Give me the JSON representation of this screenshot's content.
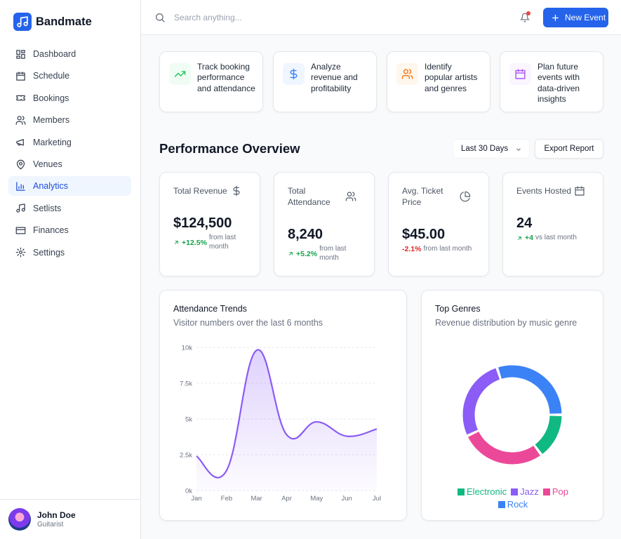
{
  "brand": "Bandmate",
  "nav": [
    "Dashboard",
    "Schedule",
    "Bookings",
    "Members",
    "Marketing",
    "Venues",
    "Analytics",
    "Setlists",
    "Finances",
    "Settings"
  ],
  "user": {
    "name": "John Doe",
    "role": "Guitarist"
  },
  "search_placeholder": "Search anything...",
  "new_event": "New Event",
  "features": [
    {
      "lines": [
        "Track booking",
        "performance",
        "and attendance"
      ]
    },
    {
      "lines": [
        "Analyze",
        "revenue and",
        "profitability"
      ]
    },
    {
      "lines": [
        "Identify",
        "popular artists",
        "and genres"
      ]
    },
    {
      "lines": [
        "Plan future",
        "events with",
        "data-driven",
        "insights"
      ]
    }
  ],
  "section_title": "Performance Overview",
  "range": "Last 30 Days",
  "export": "Export Report",
  "stats": [
    {
      "label": "Total Revenue",
      "value": "$124,500",
      "change": "+12.5%",
      "note": "from last month"
    },
    {
      "label": "Total Attendance",
      "value": "8,240",
      "change": "+5.2%",
      "note": "from last month"
    },
    {
      "label": "Avg. Ticket Price",
      "value": "$45.00",
      "change": "-2.1%",
      "note": "from last month"
    },
    {
      "label": "Events Hosted",
      "value": "24",
      "change": "+4",
      "note": "vs last month"
    }
  ],
  "attendance_chart": {
    "type": "line",
    "title": "Attendance Trends",
    "subtitle": "Visitor numbers over the last 6 months",
    "categories": [
      "Jan",
      "Feb",
      "Mar",
      "Apr",
      "May",
      "Jun",
      "Jul"
    ],
    "values": [
      2400,
      1400,
      9800,
      3900,
      4800,
      3800,
      4300
    ],
    "color": "#8b5cf6",
    "ylim": [
      0,
      10000
    ],
    "yticks": [
      {
        "value": 0,
        "label": "0k"
      },
      {
        "value": 2500,
        "label": "2.5k"
      },
      {
        "value": 5000,
        "label": "5k"
      },
      {
        "value": 7500,
        "label": "7.5k"
      },
      {
        "value": 10000,
        "label": "10k"
      }
    ],
    "grid": true
  },
  "genre_chart": {
    "type": "donut",
    "title": "Top Genres",
    "subtitle": "Revenue distribution by music genre",
    "categories": [
      "Electronic",
      "Jazz",
      "Pop",
      "Rock"
    ],
    "values": [
      15,
      27,
      28,
      30
    ],
    "colors": [
      "#10b981",
      "#8b5cf6",
      "#ec4899",
      "#3b82f6"
    ]
  }
}
